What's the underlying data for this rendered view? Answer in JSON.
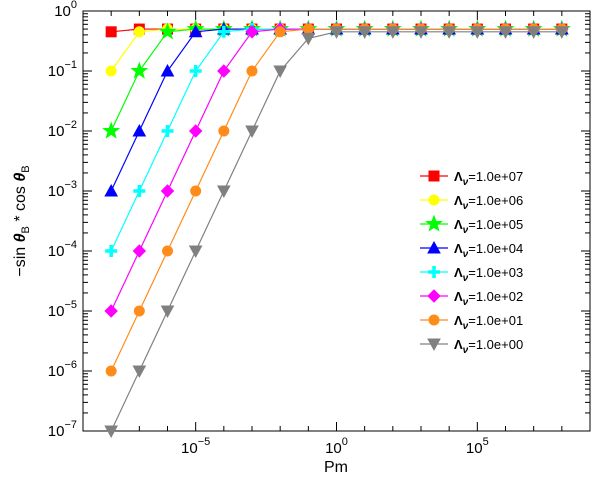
{
  "chart_data": {
    "type": "line",
    "xlabel": "Pm",
    "ylabel_parts": [
      "−sin ",
      "θ",
      "B",
      " * cos ",
      "θ",
      "B"
    ],
    "x_scale": "log",
    "y_scale": "log",
    "xlim": [
      1e-09,
      1000000000.0
    ],
    "ylim": [
      1e-07,
      1
    ],
    "grid": false,
    "legend_position": "center-right",
    "x_tick_labels": [
      {
        "base": "10",
        "exp": "−5",
        "value": 1e-05
      },
      {
        "base": "10",
        "exp": "0",
        "value": 1
      },
      {
        "base": "10",
        "exp": "5",
        "value": 100000.0
      }
    ],
    "y_tick_labels": [
      {
        "base": "10",
        "exp": "0",
        "value": 1
      },
      {
        "base": "10",
        "exp": "−1",
        "value": 0.1
      },
      {
        "base": "10",
        "exp": "−2",
        "value": 0.01
      },
      {
        "base": "10",
        "exp": "−3",
        "value": 0.001
      },
      {
        "base": "10",
        "exp": "−4",
        "value": 0.0001
      },
      {
        "base": "10",
        "exp": "−5",
        "value": 1e-05
      },
      {
        "base": "10",
        "exp": "−6",
        "value": 1e-06
      },
      {
        "base": "10",
        "exp": "−7",
        "value": 1e-07
      }
    ],
    "x": [
      1e-08,
      1e-07,
      1e-06,
      1e-05,
      0.0001,
      0.001,
      0.01,
      0.1,
      1,
      10,
      100,
      1000,
      10000.0,
      100000.0,
      1000000.0,
      10000000.0,
      100000000.0
    ],
    "series": [
      {
        "name": "Λ_ν=1.0e+07",
        "sym": "Λ",
        "sub": "ν",
        "value_text": "=1.0e+07",
        "color": "#ff0000",
        "marker": "square",
        "values": [
          0.45,
          0.5,
          0.5,
          0.5,
          0.5,
          0.5,
          0.5,
          0.5,
          0.5,
          0.5,
          0.5,
          0.5,
          0.5,
          0.5,
          0.5,
          0.5,
          0.5
        ]
      },
      {
        "name": "Λ_ν=1.0e+06",
        "sym": "Λ",
        "sub": "ν",
        "value_text": "=1.0e+06",
        "color": "#ffff00",
        "marker": "circle",
        "values": [
          0.1,
          0.45,
          0.5,
          0.5,
          0.5,
          0.5,
          0.5,
          0.5,
          0.5,
          0.5,
          0.5,
          0.5,
          0.5,
          0.5,
          0.5,
          0.5,
          0.5
        ]
      },
      {
        "name": "Λ_ν=1.0e+05",
        "sym": "Λ",
        "sub": "ν",
        "value_text": "=1.0e+05",
        "color": "#00ff00",
        "marker": "star",
        "values": [
          0.01,
          0.1,
          0.45,
          0.5,
          0.5,
          0.5,
          0.5,
          0.5,
          0.5,
          0.5,
          0.5,
          0.5,
          0.5,
          0.5,
          0.5,
          0.5,
          0.5
        ]
      },
      {
        "name": "Λ_ν=1.0e+04",
        "sym": "Λ",
        "sub": "ν",
        "value_text": "=1.0e+04",
        "color": "#0000ff",
        "marker": "triangle-up",
        "values": [
          0.001,
          0.01,
          0.1,
          0.45,
          0.5,
          0.5,
          0.5,
          0.5,
          0.5,
          0.5,
          0.5,
          0.5,
          0.5,
          0.5,
          0.5,
          0.5,
          0.5
        ]
      },
      {
        "name": "Λ_ν=1.0e+03",
        "sym": "Λ",
        "sub": "ν",
        "value_text": "=1.0e+03",
        "color": "#00ffff",
        "marker": "plus",
        "values": [
          0.0001,
          0.001,
          0.01,
          0.1,
          0.45,
          0.5,
          0.5,
          0.5,
          0.5,
          0.5,
          0.5,
          0.5,
          0.5,
          0.5,
          0.5,
          0.5,
          0.5
        ]
      },
      {
        "name": "Λ_ν=1.0e+02",
        "sym": "Λ",
        "sub": "ν",
        "value_text": "=1.0e+02",
        "color": "#ff00ff",
        "marker": "diamond",
        "values": [
          1e-05,
          0.0001,
          0.001,
          0.01,
          0.1,
          0.45,
          0.5,
          0.5,
          0.5,
          0.5,
          0.5,
          0.5,
          0.5,
          0.5,
          0.5,
          0.5,
          0.5
        ]
      },
      {
        "name": "Λ_ν=1.0e+01",
        "sym": "Λ",
        "sub": "ν",
        "value_text": "=1.0e+01",
        "color": "#ff8c1a",
        "marker": "circle",
        "values": [
          1e-06,
          1e-05,
          0.0001,
          0.001,
          0.01,
          0.1,
          0.45,
          0.5,
          0.5,
          0.5,
          0.5,
          0.5,
          0.5,
          0.5,
          0.5,
          0.5,
          0.5
        ]
      },
      {
        "name": "Λ_ν=1.0e+00",
        "sym": "Λ",
        "sub": "ν",
        "value_text": "=1.0e+00",
        "color": "#808080",
        "marker": "triangle-down",
        "values": [
          1e-07,
          1e-06,
          1e-05,
          0.0001,
          0.001,
          0.01,
          0.1,
          0.35,
          0.45,
          0.45,
          0.45,
          0.45,
          0.45,
          0.45,
          0.45,
          0.45,
          0.45
        ]
      }
    ]
  }
}
